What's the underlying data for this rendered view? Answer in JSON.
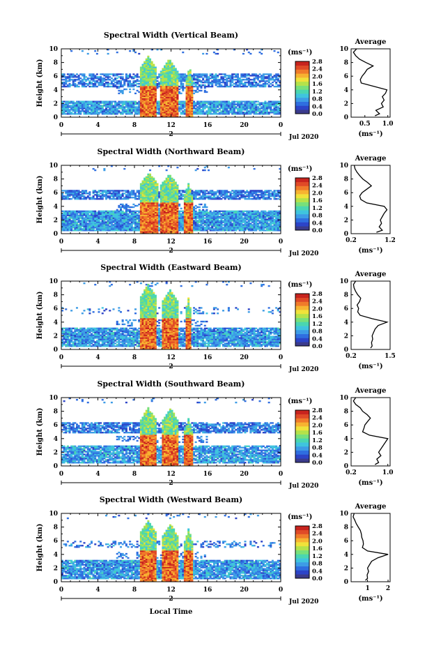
{
  "colors": {
    "colorbar": [
      "#3b3b8c",
      "#2c44c8",
      "#2f6ee0",
      "#3d9ce6",
      "#3fc4de",
      "#4ad6b0",
      "#78e07a",
      "#b4e24a",
      "#f0e23a",
      "#f7b331",
      "#f07b2a",
      "#e04a27",
      "#c8241e"
    ],
    "axis": "#000000",
    "background": "#ffffff"
  },
  "shared": {
    "x_date_label": "Jul 2020",
    "x_day_label": "2",
    "x_axis_title": "Local Time",
    "y_axis_title": "Height (km)",
    "unit_label": "(ms⁻¹)",
    "average_title": "Average",
    "avg_unit_label": "(ms⁻¹)"
  },
  "chart_data": [
    {
      "type": "heatmap",
      "title": "Spectral Width (Vertical Beam)",
      "ylabel": "Height (km)",
      "xlabel": "",
      "x_ticks": [
        "0",
        "4",
        "8",
        "12",
        "16",
        "20",
        "0"
      ],
      "xlim": [
        0,
        24
      ],
      "y_ticks": [
        "0",
        "2",
        "4",
        "6",
        "8",
        "10"
      ],
      "ylim": [
        0,
        10
      ],
      "colorbar_ticks": [
        "2.8",
        "2.4",
        "2.0",
        "1.6",
        "1.2",
        "0.8",
        "0.4",
        "0.0"
      ],
      "colorbar_range": [
        0,
        2.8
      ],
      "average": {
        "title": "Average",
        "xlabel": "(ms⁻¹)",
        "x_ticks": [
          "0.5",
          "1.0"
        ],
        "x_tick_values": [
          0.5,
          1.0
        ],
        "xlim": [
          0.2,
          1.05
        ],
        "profile": [
          [
            0.2,
            0.72
          ],
          [
            0.5,
            0.82
          ],
          [
            1.0,
            0.74
          ],
          [
            1.5,
            0.9
          ],
          [
            2.0,
            0.86
          ],
          [
            2.5,
            0.92
          ],
          [
            3.0,
            0.88
          ],
          [
            3.5,
            0.95
          ],
          [
            4.0,
            0.98
          ],
          [
            4.5,
            0.7
          ],
          [
            5.0,
            0.42
          ],
          [
            5.5,
            0.4
          ],
          [
            6.0,
            0.44
          ],
          [
            6.5,
            0.5
          ],
          [
            7.0,
            0.55
          ],
          [
            7.5,
            0.68
          ],
          [
            8.0,
            0.52
          ],
          [
            8.5,
            0.38
          ],
          [
            9.0,
            0.3
          ],
          [
            9.5,
            0.25
          ],
          [
            10.0,
            0.32
          ]
        ]
      },
      "fields": {
        "low": [
          0.4,
          2.5,
          0.9
        ],
        "mid": [
          4.5,
          6.5,
          0.7
        ],
        "top": 10,
        "cores": [
          [
            8.6,
            10.4,
            4.5,
            9
          ],
          [
            10.8,
            12.8,
            4.5,
            8.5
          ],
          [
            13.7,
            14.3,
            4.5,
            7.5
          ]
        ]
      }
    },
    {
      "type": "heatmap",
      "title": "Spectral Width (Northward Beam)",
      "ylabel": "Height (km)",
      "xlabel": "",
      "x_ticks": [
        "0",
        "4",
        "8",
        "12",
        "16",
        "20",
        "0"
      ],
      "xlim": [
        0,
        24
      ],
      "y_ticks": [
        "0",
        "2",
        "4",
        "6",
        "8",
        "10"
      ],
      "ylim": [
        0,
        10
      ],
      "colorbar_ticks": [
        "2.8",
        "2.4",
        "2.0",
        "1.6",
        "1.2",
        "0.8",
        "0.4",
        "0.0"
      ],
      "colorbar_range": [
        0,
        2.8
      ],
      "average": {
        "title": "Average",
        "xlabel": "(ms⁻¹)",
        "x_ticks": [
          "0.2",
          "1.2"
        ],
        "x_tick_values": [
          0.2,
          1.2
        ],
        "xlim": [
          0.2,
          1.2
        ],
        "profile": [
          [
            0.2,
            0.85
          ],
          [
            0.5,
            1.0
          ],
          [
            1.0,
            0.92
          ],
          [
            1.5,
            0.98
          ],
          [
            2.0,
            0.95
          ],
          [
            2.5,
            1.0
          ],
          [
            3.0,
            1.05
          ],
          [
            3.5,
            1.12
          ],
          [
            4.0,
            1.05
          ],
          [
            4.5,
            0.6
          ],
          [
            5.0,
            0.45
          ],
          [
            5.5,
            0.42
          ],
          [
            6.0,
            0.48
          ],
          [
            6.5,
            0.6
          ],
          [
            7.0,
            0.72
          ],
          [
            7.5,
            0.62
          ],
          [
            8.0,
            0.5
          ],
          [
            8.5,
            0.42
          ],
          [
            9.0,
            0.35
          ],
          [
            9.5,
            0.3
          ],
          [
            10.0,
            0.28
          ]
        ]
      },
      "fields": {
        "low": [
          0.4,
          3.5,
          0.95
        ],
        "mid": [
          5.0,
          6.5,
          0.8
        ],
        "top": 10,
        "cores": [
          [
            8.6,
            10.6,
            4.5,
            9
          ],
          [
            10.8,
            12.8,
            4.5,
            8.8
          ],
          [
            13.5,
            14.3,
            4.5,
            7.5
          ]
        ]
      }
    },
    {
      "type": "heatmap",
      "title": "Spectral Width (Eastward Beam)",
      "ylabel": "Height (km)",
      "xlabel": "",
      "x_ticks": [
        "0",
        "4",
        "8",
        "12",
        "16",
        "20",
        "0"
      ],
      "xlim": [
        0,
        24
      ],
      "y_ticks": [
        "0",
        "2",
        "4",
        "6",
        "8",
        "10"
      ],
      "ylim": [
        0,
        10
      ],
      "colorbar_ticks": [
        "2.8",
        "2.4",
        "2.0",
        "1.6",
        "1.2",
        "0.8",
        "0.4",
        "0.0"
      ],
      "colorbar_range": [
        0,
        2.8
      ],
      "average": {
        "title": "Average",
        "xlabel": "(ms⁻¹)",
        "x_ticks": [
          "0.2",
          "1.5"
        ],
        "x_tick_values": [
          0.2,
          1.5
        ],
        "xlim": [
          0.2,
          1.5
        ],
        "profile": [
          [
            0.2,
            0.85
          ],
          [
            0.5,
            0.9
          ],
          [
            1.0,
            0.88
          ],
          [
            1.5,
            0.92
          ],
          [
            2.0,
            0.9
          ],
          [
            2.5,
            0.95
          ],
          [
            3.0,
            1.0
          ],
          [
            3.5,
            1.1
          ],
          [
            4.0,
            1.4
          ],
          [
            4.5,
            0.9
          ],
          [
            5.0,
            0.5
          ],
          [
            5.5,
            0.42
          ],
          [
            6.0,
            0.45
          ],
          [
            6.5,
            0.4
          ],
          [
            7.0,
            0.48
          ],
          [
            7.5,
            0.52
          ],
          [
            8.0,
            0.42
          ],
          [
            8.5,
            0.35
          ],
          [
            9.0,
            0.3
          ],
          [
            9.5,
            0.28
          ],
          [
            10.0,
            0.35
          ]
        ]
      },
      "fields": {
        "low": [
          0.4,
          3.3,
          0.9
        ],
        "mid": [
          5.2,
          6.2,
          0.15
        ],
        "top": 10,
        "cores": [
          [
            8.6,
            10.4,
            4.5,
            9.5
          ],
          [
            11.0,
            12.8,
            4.5,
            8.8
          ],
          [
            13.6,
            14.2,
            4.5,
            7.5
          ]
        ]
      }
    },
    {
      "type": "heatmap",
      "title": "Spectral Width (Southward Beam)",
      "ylabel": "Height (km)",
      "xlabel": "",
      "x_ticks": [
        "0",
        "4",
        "8",
        "12",
        "16",
        "20",
        "0"
      ],
      "xlim": [
        0,
        24
      ],
      "y_ticks": [
        "0",
        "2",
        "4",
        "6",
        "8",
        "10"
      ],
      "ylim": [
        0,
        10
      ],
      "colorbar_ticks": [
        "2.8",
        "2.4",
        "2.0",
        "1.6",
        "1.2",
        "0.8",
        "0.4",
        "0.0"
      ],
      "colorbar_range": [
        0,
        2.8
      ],
      "average": {
        "title": "Average",
        "xlabel": "(ms⁻¹)",
        "x_ticks": [
          "0.2",
          "1.0"
        ],
        "x_tick_values": [
          0.2,
          1.0
        ],
        "xlim": [
          0.2,
          1.05
        ],
        "profile": [
          [
            0.2,
            0.72
          ],
          [
            0.5,
            0.8
          ],
          [
            1.0,
            0.76
          ],
          [
            1.5,
            0.85
          ],
          [
            2.0,
            0.8
          ],
          [
            2.5,
            0.85
          ],
          [
            3.0,
            0.9
          ],
          [
            3.5,
            0.95
          ],
          [
            4.0,
            1.0
          ],
          [
            4.5,
            0.6
          ],
          [
            5.0,
            0.45
          ],
          [
            5.5,
            0.48
          ],
          [
            6.0,
            0.5
          ],
          [
            6.5,
            0.56
          ],
          [
            7.0,
            0.62
          ],
          [
            7.5,
            0.55
          ],
          [
            8.0,
            0.45
          ],
          [
            8.5,
            0.4
          ],
          [
            9.0,
            0.3
          ],
          [
            9.5,
            0.25
          ],
          [
            10.0,
            0.3
          ]
        ]
      },
      "fields": {
        "low": [
          0.4,
          3.0,
          0.85
        ],
        "mid": [
          4.8,
          6.5,
          0.75
        ],
        "top": 10,
        "cores": [
          [
            8.6,
            10.4,
            4.5,
            8.5
          ],
          [
            11.0,
            12.8,
            4.5,
            8.5
          ],
          [
            13.5,
            14.3,
            4.5,
            7
          ]
        ]
      }
    },
    {
      "type": "heatmap",
      "title": "Spectral Width (Westward Beam)",
      "ylabel": "Height (km)",
      "xlabel": "Local Time",
      "x_ticks": [
        "0",
        "4",
        "8",
        "12",
        "16",
        "20",
        "0"
      ],
      "xlim": [
        0,
        24
      ],
      "y_ticks": [
        "0",
        "2",
        "4",
        "6",
        "8",
        "10"
      ],
      "ylim": [
        0,
        10
      ],
      "colorbar_ticks": [
        "2.8",
        "2.4",
        "2.0",
        "1.6",
        "1.2",
        "0.8",
        "0.4",
        "0.0"
      ],
      "colorbar_range": [
        0,
        2.8
      ],
      "average": {
        "title": "Average",
        "xlabel": "(ms⁻¹)",
        "x_ticks": [
          "1",
          "2"
        ],
        "x_tick_values": [
          1,
          2
        ],
        "xlim": [
          0.2,
          2.1
        ],
        "profile": [
          [
            0.2,
            0.9
          ],
          [
            0.5,
            1.0
          ],
          [
            1.0,
            0.98
          ],
          [
            1.5,
            1.05
          ],
          [
            2.0,
            1.0
          ],
          [
            2.5,
            1.1
          ],
          [
            3.0,
            1.2
          ],
          [
            3.5,
            1.5
          ],
          [
            4.0,
            2.0
          ],
          [
            4.5,
            1.0
          ],
          [
            5.0,
            0.75
          ],
          [
            5.5,
            0.8
          ],
          [
            6.0,
            0.78
          ],
          [
            6.5,
            0.72
          ],
          [
            7.0,
            0.7
          ],
          [
            7.5,
            0.65
          ],
          [
            8.0,
            0.55
          ],
          [
            8.5,
            0.45
          ],
          [
            9.0,
            0.38
          ],
          [
            9.5,
            0.3
          ],
          [
            10.0,
            0.35
          ]
        ]
      },
      "fields": {
        "low": [
          0.4,
          3.2,
          0.9
        ],
        "mid": [
          5.0,
          6.0,
          0.3
        ],
        "top": 10,
        "cores": [
          [
            8.6,
            10.4,
            4.5,
            9
          ],
          [
            11.0,
            12.8,
            4.5,
            8.5
          ],
          [
            13.5,
            14.3,
            4.5,
            7.8
          ]
        ]
      }
    }
  ]
}
